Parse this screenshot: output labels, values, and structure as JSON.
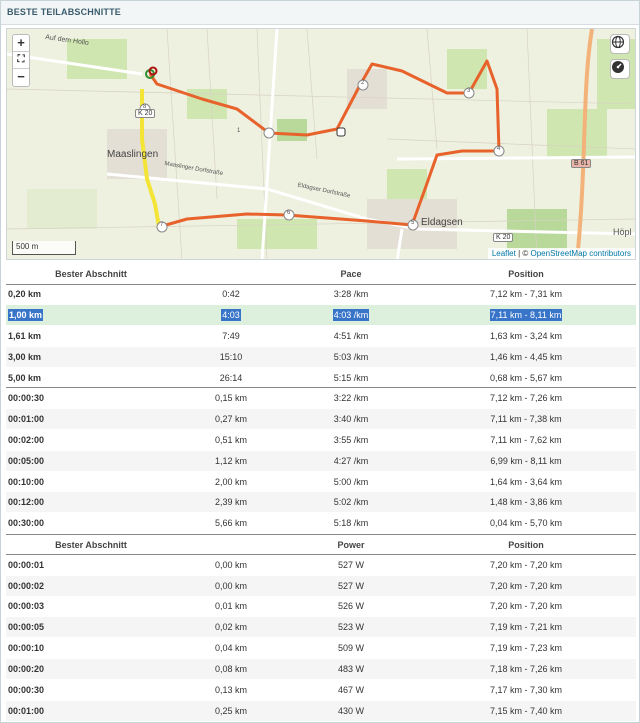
{
  "panel": {
    "title": "BESTE TEILABSCHNITTE"
  },
  "map": {
    "zoom_in": "+",
    "fullscreen": "⛶",
    "zoom_out": "−",
    "scale": "500 m",
    "attribution_leaflet": "Leaflet",
    "attribution_sep": " | © ",
    "attribution_osm": "OpenStreetMap contributors",
    "labels": {
      "auf_dem_hollo": "Auf dem Hollo",
      "maaslingen": "Maaslingen",
      "maaslinger_dorfstrasse": "Maaslinger Dorfstraße",
      "eldagser_dorfstrasse": "Eldagser Dorfstraße",
      "eldagsen": "Eldagsen",
      "hoepl": "Höpl",
      "b61": "B 61",
      "k20": "K 20",
      "k20_left": "K 20"
    },
    "markers": [
      "1",
      "2",
      "3",
      "4",
      "5",
      "6",
      "7",
      "8"
    ],
    "route_color": "#e8622c",
    "highlight_color": "#f4e436"
  },
  "distance_table": {
    "headers": [
      "Bester Abschnitt",
      "",
      "Pace",
      "Position"
    ],
    "rows": [
      {
        "label": "0,20 km",
        "time": "0:42",
        "pace": "3:28 /km",
        "position": "7,12 km - 7,31 km"
      },
      {
        "label": "1,00 km",
        "time": "4:03",
        "pace": "4:03 /km",
        "position": "7,11 km - 8,11 km"
      },
      {
        "label": "1,61 km",
        "time": "7:49",
        "pace": "4:51 /km",
        "position": "1,63 km - 3,24 km"
      },
      {
        "label": "3,00 km",
        "time": "15:10",
        "pace": "5:03 /km",
        "position": "1,46 km - 4,45 km"
      },
      {
        "label": "5,00 km",
        "time": "26:14",
        "pace": "5:15 /km",
        "position": "0,68 km - 5,67 km"
      }
    ]
  },
  "time_table": {
    "rows": [
      {
        "label": "00:00:30",
        "distance": "0,15 km",
        "pace": "3:22 /km",
        "position": "7,12 km - 7,26 km"
      },
      {
        "label": "00:01:00",
        "distance": "0,27 km",
        "pace": "3:40 /km",
        "position": "7,11 km - 7,38 km"
      },
      {
        "label": "00:02:00",
        "distance": "0,51 km",
        "pace": "3:55 /km",
        "position": "7,11 km - 7,62 km"
      },
      {
        "label": "00:05:00",
        "distance": "1,12 km",
        "pace": "4:27 /km",
        "position": "6,99 km - 8,11 km"
      },
      {
        "label": "00:10:00",
        "distance": "2,00 km",
        "pace": "5:00 /km",
        "position": "1,64 km - 3,64 km"
      },
      {
        "label": "00:12:00",
        "distance": "2,39 km",
        "pace": "5:02 /km",
        "position": "1,48 km - 3,86 km"
      },
      {
        "label": "00:30:00",
        "distance": "5,66 km",
        "pace": "5:18 /km",
        "position": "0,04 km - 5,70 km"
      }
    ]
  },
  "power_table": {
    "headers": [
      "Bester Abschnitt",
      "",
      "Power",
      "Position"
    ],
    "rows": [
      {
        "label": "00:00:01",
        "distance": "0,00 km",
        "power": "527 W",
        "position": "7,20 km - 7,20 km"
      },
      {
        "label": "00:00:02",
        "distance": "0,00 km",
        "power": "527 W",
        "position": "7,20 km - 7,20 km"
      },
      {
        "label": "00:00:03",
        "distance": "0,01 km",
        "power": "526 W",
        "position": "7,20 km - 7,20 km"
      },
      {
        "label": "00:00:05",
        "distance": "0,02 km",
        "power": "523 W",
        "position": "7,19 km - 7,21 km"
      },
      {
        "label": "00:00:10",
        "distance": "0,04 km",
        "power": "509 W",
        "position": "7,19 km - 7,23 km"
      },
      {
        "label": "00:00:20",
        "distance": "0,08 km",
        "power": "483 W",
        "position": "7,18 km - 7,26 km"
      },
      {
        "label": "00:00:30",
        "distance": "0,13 km",
        "power": "467 W",
        "position": "7,17 km - 7,30 km"
      },
      {
        "label": "00:01:00",
        "distance": "0,25 km",
        "power": "430 W",
        "position": "7,15 km - 7,40 km"
      }
    ]
  }
}
